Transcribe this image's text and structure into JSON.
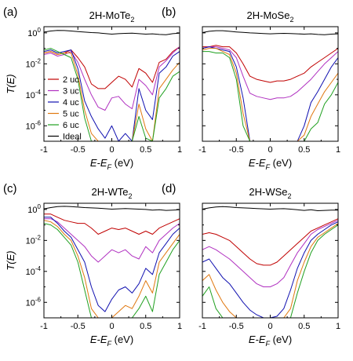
{
  "figure": {
    "y_axis_label": "T(E)",
    "x_axis_label": "E-E",
    "x_axis_sub": "F",
    "x_axis_unit": " (eV)"
  },
  "legend": {
    "entries": [
      "2 uc",
      "3 uc",
      "4 uc",
      "5 uc",
      "6 uc",
      "Ideal"
    ],
    "colors": [
      "#c00000",
      "#b030c0",
      "#1010b0",
      "#e07810",
      "#20a020",
      "#000000"
    ]
  },
  "chart_data": [
    {
      "type": "line",
      "panel_letter": "(a)",
      "title_main": "2H-MoTe",
      "title_sub": "2",
      "xlim": [
        -1,
        1
      ],
      "ylim_log10": [
        -7,
        0.4
      ],
      "x": [
        -1.0,
        -0.9,
        -0.8,
        -0.7,
        -0.6,
        -0.5,
        -0.4,
        -0.3,
        -0.2,
        -0.1,
        0.0,
        0.1,
        0.2,
        0.3,
        0.4,
        0.5,
        0.6,
        0.7,
        0.8,
        0.9,
        1.0
      ],
      "series": [
        {
          "name": "2 uc",
          "log10_values": [
            -1.3,
            -1.2,
            -1.4,
            -1.3,
            -1.1,
            -1.6,
            -2.2,
            -3.3,
            -3.6,
            -3.6,
            -3.2,
            -2.8,
            -3.0,
            -3.5,
            -2.3,
            -2.6,
            -3.2,
            -1.9,
            -1.7,
            -1.2,
            -0.9
          ]
        },
        {
          "name": "3 uc",
          "log10_values": [
            -1.4,
            -1.3,
            -1.5,
            -1.4,
            -1.2,
            -1.9,
            -3.0,
            -4.0,
            -4.8,
            -5.0,
            -4.2,
            -4.1,
            -4.6,
            -4.9,
            -3.0,
            -3.4,
            -4.0,
            -2.2,
            -1.8,
            -1.3,
            -0.9
          ]
        },
        {
          "name": "4 uc",
          "log10_values": [
            -1.2,
            -1.1,
            -1.3,
            -1.2,
            -1.1,
            -2.3,
            -4.4,
            -5.4,
            -6.2,
            -6.8,
            -6.0,
            -7.0,
            -6.5,
            -7.0,
            -3.6,
            -5.0,
            -5.6,
            -2.6,
            -2.2,
            -1.5,
            -1.2
          ]
        },
        {
          "name": "5 uc",
          "log10_values": [
            -1.3,
            -1.2,
            -1.4,
            -1.3,
            -1.3,
            -2.7,
            -5.0,
            -6.5,
            -7.0,
            -7.0,
            -7.0,
            -7.0,
            -7.0,
            -7.0,
            -4.6,
            -6.2,
            -7.0,
            -3.6,
            -3.0,
            -2.4,
            -1.9
          ]
        },
        {
          "name": "6 uc",
          "log10_values": [
            -1.1,
            -1.0,
            -1.2,
            -1.4,
            -1.6,
            -3.0,
            -5.5,
            -7.0,
            -7.0,
            -7.0,
            -7.0,
            -7.0,
            -7.0,
            -7.0,
            -5.4,
            -6.8,
            -7.0,
            -4.2,
            -3.6,
            -2.8,
            -2.5
          ]
        },
        {
          "name": "Ideal",
          "log10_values": [
            0.05,
            0.12,
            0.16,
            0.15,
            0.12,
            0.08,
            0.05,
            0.02,
            0.0,
            -0.04,
            -0.08,
            -0.05,
            -0.03,
            -0.02,
            -0.05,
            -0.08,
            -0.06,
            -0.1,
            -0.12,
            -0.05,
            -0.02
          ]
        }
      ]
    },
    {
      "type": "line",
      "panel_letter": "(b)",
      "title_main": "2H-MoSe",
      "title_sub": "2",
      "xlim": [
        -1,
        1
      ],
      "ylim_log10": [
        -7,
        0.4
      ],
      "x": [
        -1.0,
        -0.9,
        -0.8,
        -0.7,
        -0.6,
        -0.5,
        -0.4,
        -0.3,
        -0.2,
        -0.1,
        0.0,
        0.1,
        0.2,
        0.3,
        0.4,
        0.5,
        0.6,
        0.7,
        0.8,
        0.9,
        1.0
      ],
      "series": [
        {
          "name": "2 uc",
          "log10_values": [
            -0.9,
            -0.9,
            -0.8,
            -0.9,
            -0.9,
            -1.3,
            -2.0,
            -2.8,
            -3.0,
            -3.1,
            -3.2,
            -3.1,
            -3.1,
            -3.0,
            -2.8,
            -2.6,
            -2.2,
            -1.9,
            -1.6,
            -1.3,
            -1.0
          ]
        },
        {
          "name": "3 uc",
          "log10_values": [
            -1.0,
            -0.9,
            -0.9,
            -1.0,
            -1.1,
            -1.6,
            -2.8,
            -3.9,
            -4.1,
            -4.2,
            -4.3,
            -4.2,
            -4.2,
            -4.1,
            -3.8,
            -3.4,
            -3.0,
            -2.5,
            -2.0,
            -1.6,
            -1.2
          ]
        },
        {
          "name": "4 uc",
          "log10_values": [
            -1.0,
            -0.9,
            -1.0,
            -1.1,
            -1.2,
            -2.2,
            -4.2,
            -7.0,
            -7.0,
            -7.0,
            -7.0,
            -7.0,
            -7.0,
            -7.0,
            -7.0,
            -6.0,
            -4.5,
            -3.8,
            -3.0,
            -2.2,
            -1.6
          ]
        },
        {
          "name": "5 uc",
          "log10_values": [
            -1.1,
            -1.0,
            -1.0,
            -1.2,
            -1.4,
            -2.6,
            -5.2,
            -7.0,
            -7.0,
            -7.0,
            -7.0,
            -7.0,
            -7.0,
            -7.0,
            -7.0,
            -6.6,
            -5.4,
            -4.6,
            -3.8,
            -3.2,
            -2.6
          ]
        },
        {
          "name": "6 uc",
          "log10_values": [
            -1.2,
            -1.2,
            -1.3,
            -1.3,
            -1.6,
            -3.0,
            -6.0,
            -7.0,
            -7.0,
            -7.0,
            -7.0,
            -7.0,
            -7.0,
            -7.0,
            -7.0,
            -7.0,
            -6.2,
            -5.8,
            -4.6,
            -4.0,
            -3.2
          ]
        },
        {
          "name": "Ideal",
          "log10_values": [
            0.02,
            0.1,
            0.14,
            0.14,
            0.1,
            0.06,
            0.03,
            0.0,
            -0.02,
            -0.04,
            -0.06,
            -0.04,
            -0.03,
            -0.04,
            -0.06,
            -0.08,
            -0.06,
            -0.1,
            -0.12,
            -0.08,
            -0.06
          ]
        }
      ]
    },
    {
      "type": "line",
      "panel_letter": "(c)",
      "title_main": "2H-WTe",
      "title_sub": "2",
      "xlim": [
        -1,
        1
      ],
      "ylim_log10": [
        -7,
        0.4
      ],
      "x": [
        -1.0,
        -0.9,
        -0.8,
        -0.7,
        -0.6,
        -0.5,
        -0.4,
        -0.3,
        -0.2,
        -0.1,
        0.0,
        0.1,
        0.2,
        0.3,
        0.4,
        0.5,
        0.6,
        0.7,
        0.8,
        0.9,
        1.0
      ],
      "series": [
        {
          "name": "2 uc",
          "log10_values": [
            -0.3,
            -0.3,
            -0.5,
            -0.7,
            -0.8,
            -0.9,
            -0.9,
            -1.2,
            -1.6,
            -1.4,
            -1.2,
            -1.3,
            -1.2,
            -1.4,
            -1.6,
            -1.4,
            -1.6,
            -1.2,
            -1.0,
            -0.8,
            -0.6
          ]
        },
        {
          "name": "3 uc",
          "log10_values": [
            -0.6,
            -0.6,
            -0.8,
            -1.2,
            -1.6,
            -2.0,
            -2.4,
            -3.0,
            -3.4,
            -3.0,
            -2.6,
            -2.8,
            -2.6,
            -3.0,
            -3.2,
            -2.4,
            -2.8,
            -2.0,
            -1.6,
            -1.2,
            -0.9
          ]
        },
        {
          "name": "4 uc",
          "log10_values": [
            -0.5,
            -0.5,
            -0.9,
            -1.4,
            -1.8,
            -2.6,
            -3.4,
            -5.0,
            -6.2,
            -6.6,
            -5.8,
            -5.2,
            -5.0,
            -5.4,
            -4.8,
            -3.8,
            -4.2,
            -2.8,
            -2.2,
            -1.6,
            -1.2
          ]
        },
        {
          "name": "5 uc",
          "log10_values": [
            -0.7,
            -0.8,
            -1.1,
            -1.6,
            -2.0,
            -3.0,
            -4.4,
            -6.4,
            -7.0,
            -7.0,
            -7.0,
            -6.6,
            -6.2,
            -6.4,
            -5.6,
            -4.6,
            -5.4,
            -3.4,
            -2.8,
            -2.2,
            -1.6
          ]
        },
        {
          "name": "6 uc",
          "log10_values": [
            -0.9,
            -1.0,
            -1.3,
            -1.8,
            -2.3,
            -3.4,
            -5.2,
            -7.0,
            -7.0,
            -7.0,
            -7.0,
            -7.0,
            -7.0,
            -7.0,
            -6.4,
            -5.6,
            -6.6,
            -4.2,
            -3.4,
            -2.6,
            -2.0
          ]
        },
        {
          "name": "Ideal",
          "log10_values": [
            0.04,
            0.12,
            0.18,
            0.2,
            0.18,
            0.15,
            0.12,
            0.1,
            0.08,
            0.05,
            0.02,
            0.04,
            0.06,
            0.04,
            0.02,
            0.0,
            -0.04,
            -0.02,
            -0.06,
            -0.04,
            -0.02
          ]
        }
      ]
    },
    {
      "type": "line",
      "panel_letter": "(d)",
      "title_main": "2H-WSe",
      "title_sub": "2",
      "xlim": [
        -1,
        1
      ],
      "ylim_log10": [
        -7,
        0.4
      ],
      "x": [
        -1.0,
        -0.9,
        -0.8,
        -0.7,
        -0.6,
        -0.5,
        -0.4,
        -0.3,
        -0.2,
        -0.1,
        0.0,
        0.1,
        0.2,
        0.3,
        0.4,
        0.5,
        0.6,
        0.7,
        0.8,
        0.9,
        1.0
      ],
      "series": [
        {
          "name": "2 uc",
          "log10_values": [
            -1.6,
            -1.5,
            -1.6,
            -1.8,
            -2.0,
            -2.4,
            -2.8,
            -3.2,
            -3.5,
            -3.6,
            -3.6,
            -3.4,
            -3.0,
            -2.6,
            -2.2,
            -1.8,
            -1.4,
            -1.2,
            -1.0,
            -0.8,
            -0.6
          ]
        },
        {
          "name": "3 uc",
          "log10_values": [
            -2.6,
            -2.4,
            -2.6,
            -2.9,
            -3.2,
            -3.6,
            -4.0,
            -4.4,
            -4.8,
            -5.0,
            -5.0,
            -4.8,
            -4.4,
            -3.6,
            -2.8,
            -2.2,
            -1.6,
            -1.3,
            -1.1,
            -0.9,
            -0.7
          ]
        },
        {
          "name": "4 uc",
          "log10_values": [
            -3.4,
            -3.2,
            -3.8,
            -4.4,
            -4.8,
            -5.4,
            -6.0,
            -6.5,
            -6.8,
            -7.0,
            -7.0,
            -6.9,
            -6.4,
            -5.2,
            -3.8,
            -2.8,
            -2.0,
            -1.6,
            -1.3,
            -1.0,
            -0.8
          ]
        },
        {
          "name": "5 uc",
          "log10_values": [
            -4.6,
            -4.2,
            -5.2,
            -6.0,
            -6.6,
            -7.0,
            -7.0,
            -7.0,
            -7.0,
            -7.0,
            -7.0,
            -7.0,
            -7.0,
            -6.4,
            -4.6,
            -3.4,
            -2.4,
            -1.8,
            -1.5,
            -1.2,
            -0.9
          ]
        },
        {
          "name": "6 uc",
          "log10_values": [
            -5.6,
            -5.0,
            -6.4,
            -7.0,
            -7.0,
            -7.0,
            -7.0,
            -7.0,
            -7.0,
            -7.0,
            -7.0,
            -7.0,
            -7.0,
            -7.0,
            -5.4,
            -4.0,
            -2.8,
            -2.0,
            -1.6,
            -1.3,
            -1.0
          ]
        },
        {
          "name": "Ideal",
          "log10_values": [
            0.02,
            0.1,
            0.16,
            0.18,
            0.16,
            0.12,
            0.1,
            0.08,
            0.06,
            0.04,
            0.02,
            0.04,
            0.05,
            0.02,
            -0.02,
            -0.06,
            -0.02,
            -0.08,
            -0.06,
            -0.04,
            -0.04
          ]
        }
      ]
    }
  ],
  "axes": {
    "x_tick_values": [
      -1,
      -0.5,
      0,
      0.5,
      1
    ],
    "x_tick_labels": [
      "-1",
      "-0.5",
      "0",
      "0.5",
      "1"
    ],
    "y_tick_exponents": [
      0,
      -2,
      -4,
      -6
    ]
  }
}
